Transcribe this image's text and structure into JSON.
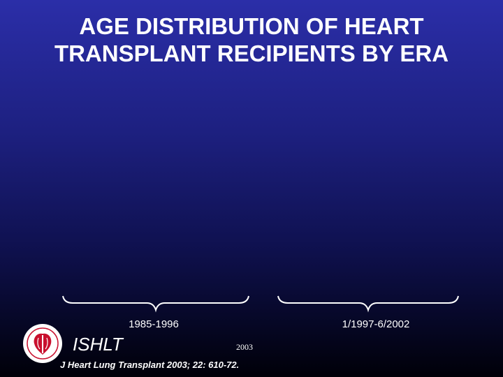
{
  "title": {
    "line1": "AGE DISTRIBUTION OF HEART",
    "line2": "TRANSPLANT RECIPIENTS BY ERA"
  },
  "eras": [
    {
      "label": "1985-1996"
    },
    {
      "label": "1/1997-6/2002"
    }
  ],
  "footer": {
    "org": "ISHLT",
    "year": "2003",
    "citation": "J Heart Lung Transplant 2003; 22: 610-72."
  },
  "colors": {
    "background_top": "#2b2ea8",
    "background_bottom": "#000008",
    "text": "#ffffff",
    "logo_red": "#c8102e"
  }
}
